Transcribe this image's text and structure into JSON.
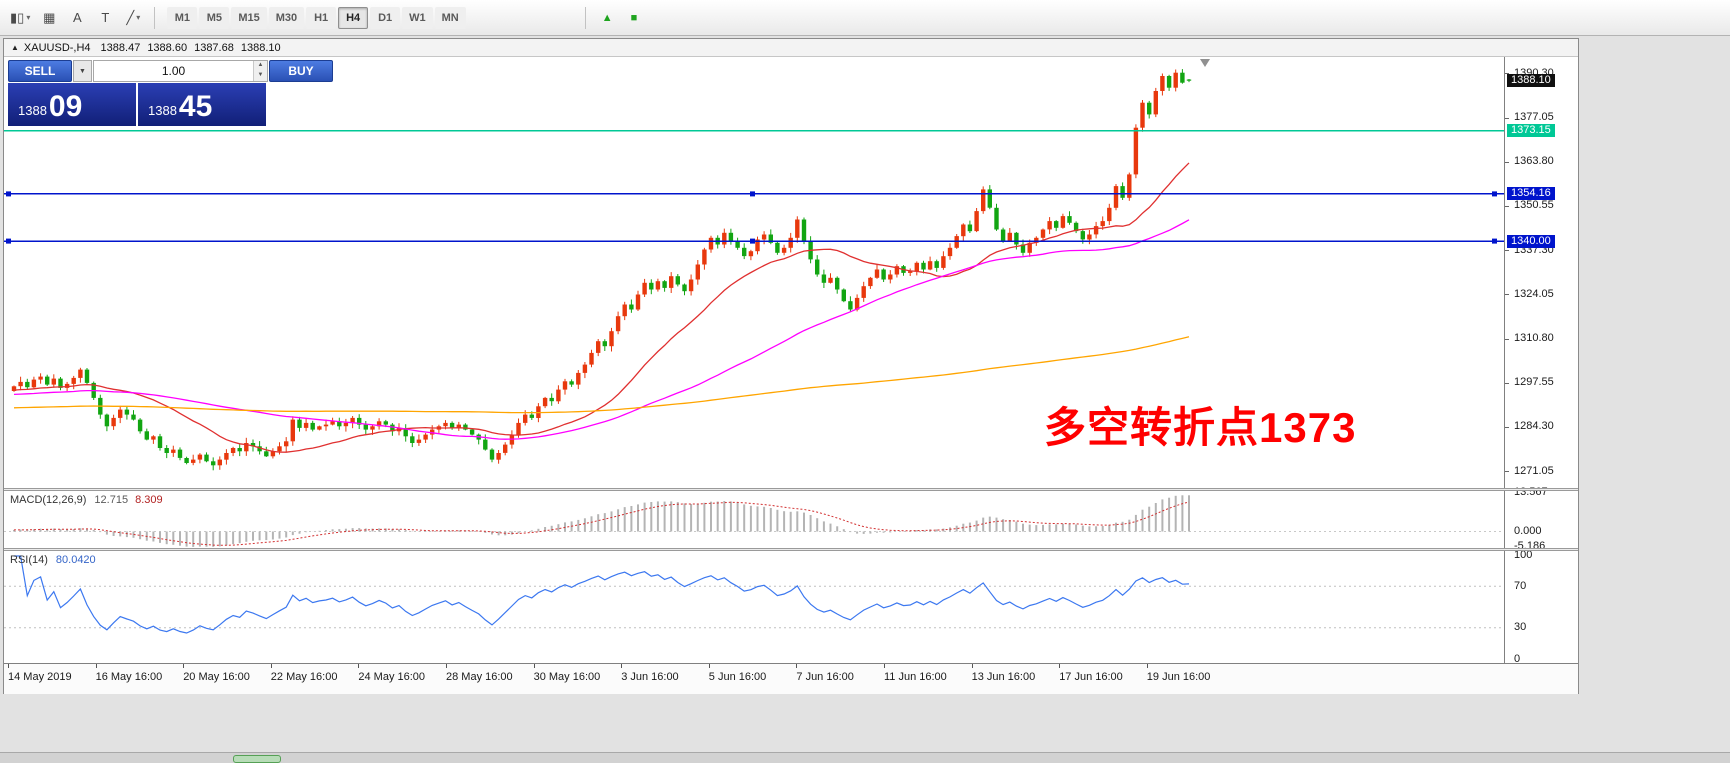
{
  "toolbar": {
    "icons": [
      {
        "name": "candlestick-chart-icon",
        "glyph": "▮▯"
      },
      {
        "name": "grid-icon",
        "glyph": "▦"
      },
      {
        "name": "letter-a-icon",
        "glyph": "A"
      },
      {
        "name": "text-label-icon",
        "glyph": "T"
      },
      {
        "name": "line-tools-icon",
        "glyph": "╱"
      },
      {
        "name": "dropdown-caret-icon",
        "glyph": "▾"
      }
    ],
    "green_markers": [
      {
        "glyph": "▲"
      },
      {
        "glyph": "■"
      }
    ],
    "timeframes": [
      {
        "label": "M1",
        "active": false
      },
      {
        "label": "M5",
        "active": false
      },
      {
        "label": "M15",
        "active": false
      },
      {
        "label": "M30",
        "active": false
      },
      {
        "label": "H1",
        "active": false
      },
      {
        "label": "H4",
        "active": true
      },
      {
        "label": "D1",
        "active": false
      },
      {
        "label": "W1",
        "active": false
      },
      {
        "label": "MN",
        "active": false
      }
    ]
  },
  "chart": {
    "header": {
      "collapse_icon": "▲",
      "symbol_period": "XAUUSD-,H4",
      "open": "1388.47",
      "high": "1388.60",
      "low": "1387.68",
      "close": "1388.10"
    },
    "trade_panel": {
      "sell_label": "SELL",
      "buy_label": "BUY",
      "volume": "1.00",
      "dropdown_glyph": "▼",
      "stepper_up": "▲",
      "stepper_down": "▼",
      "sell_price_small": "1388",
      "sell_price_big": "09",
      "buy_price_small": "1388",
      "buy_price_big": "45"
    },
    "annotation": "多空转折点1373",
    "price_scale": {
      "ticks": [
        "1390.30",
        "1377.05",
        "1363.80",
        "1350.55",
        "1337.30",
        "1324.05",
        "1310.80",
        "1297.55",
        "1284.30",
        "1271.05"
      ],
      "badges": [
        {
          "label": "1388.10",
          "color": "#101010",
          "type": "current-price"
        },
        {
          "label": "1373.15",
          "color": "#00C896",
          "type": "level"
        },
        {
          "label": "1354.16",
          "color": "#0014CC",
          "type": "level"
        },
        {
          "label": "1340.00",
          "color": "#0014CC",
          "type": "level"
        }
      ]
    },
    "time_axis": [
      "14 May 2019",
      "16 May 16:00",
      "20 May 16:00",
      "22 May 16:00",
      "24 May 16:00",
      "28 May 16:00",
      "30 May 16:00",
      "3 Jun 16:00",
      "5 Jun 16:00",
      "7 Jun 16:00",
      "11 Jun 16:00",
      "13 Jun 16:00",
      "17 Jun 16:00",
      "19 Jun 16:00"
    ]
  },
  "macd": {
    "title": "MACD(12,26,9)",
    "value_main": "12.715",
    "value_signal": "8.309",
    "scale": [
      "13.567",
      "0.000",
      "-5.186"
    ],
    "ylim": [
      -5.8,
      14.2
    ],
    "fast": 12,
    "slow": 26,
    "signal": 9
  },
  "rsi": {
    "title": "RSI(14)",
    "value": "80.0420",
    "period": 14,
    "levels": [
      70,
      30
    ],
    "scale": [
      "100",
      "70",
      "30",
      "0"
    ]
  },
  "colors": {
    "up": "#E8380D",
    "down": "#12A512",
    "macd_hist": "#b4b4b4",
    "macd_signal": "#d23030",
    "rsi_line": "#3C78F0",
    "annotation": "#FF0000"
  },
  "chart_data": {
    "type": "candlestick",
    "symbol": "XAUUSD-",
    "timeframe": "H4",
    "ylim": [
      1266,
      1395.5
    ],
    "ohlc_current": {
      "open": 1388.47,
      "high": 1388.6,
      "low": 1387.68,
      "close": 1388.1
    },
    "closes": [
      1296.5,
      1297.8,
      1296.2,
      1298.5,
      1299.4,
      1297.0,
      1298.8,
      1296.0,
      1297.2,
      1299.0,
      1301.5,
      1297.5,
      1293.0,
      1288.0,
      1284.5,
      1287.0,
      1289.5,
      1288.0,
      1286.5,
      1283.0,
      1280.5,
      1281.5,
      1278.0,
      1276.5,
      1277.5,
      1275.0,
      1273.5,
      1274.5,
      1276.0,
      1274.0,
      1272.8,
      1274.5,
      1276.5,
      1278.0,
      1277.0,
      1279.5,
      1278.5,
      1277.0,
      1275.5,
      1277.0,
      1278.5,
      1280.0,
      1286.5,
      1284.0,
      1285.5,
      1283.5,
      1284.5,
      1285.0,
      1286.0,
      1284.5,
      1285.5,
      1287.0,
      1285.0,
      1283.5,
      1284.5,
      1286.0,
      1285.0,
      1283.0,
      1284.0,
      1281.5,
      1279.5,
      1280.5,
      1282.0,
      1283.5,
      1284.5,
      1285.5,
      1284.0,
      1285.0,
      1283.5,
      1282.0,
      1280.5,
      1277.5,
      1274.5,
      1276.5,
      1279.0,
      1282.0,
      1285.5,
      1288.0,
      1287.0,
      1290.5,
      1293.0,
      1292.0,
      1295.5,
      1298.0,
      1297.0,
      1300.5,
      1303.0,
      1306.5,
      1310.0,
      1308.5,
      1313.0,
      1317.5,
      1321.0,
      1319.5,
      1324.0,
      1327.5,
      1325.5,
      1328.0,
      1326.0,
      1329.5,
      1327.0,
      1325.0,
      1328.5,
      1333.0,
      1337.5,
      1341.0,
      1339.0,
      1342.5,
      1340.0,
      1338.0,
      1335.5,
      1337.0,
      1340.5,
      1342.0,
      1339.5,
      1336.5,
      1338.0,
      1341.0,
      1346.5,
      1340.0,
      1334.5,
      1330.0,
      1327.5,
      1329.0,
      1325.5,
      1322.0,
      1319.5,
      1323.0,
      1326.5,
      1329.0,
      1331.5,
      1328.5,
      1330.0,
      1332.5,
      1330.5,
      1331.0,
      1333.5,
      1331.5,
      1334.0,
      1332.0,
      1335.5,
      1338.0,
      1341.5,
      1345.0,
      1343.0,
      1349.0,
      1355.5,
      1350.0,
      1343.5,
      1340.0,
      1342.5,
      1339.0,
      1336.5,
      1339.5,
      1341.0,
      1343.5,
      1346.0,
      1344.0,
      1347.5,
      1345.5,
      1343.0,
      1340.5,
      1342.0,
      1344.5,
      1346.0,
      1350.0,
      1356.5,
      1353.0,
      1360.0,
      1374.0,
      1381.5,
      1378.0,
      1385.0,
      1389.5,
      1386.0,
      1390.5,
      1387.5,
      1388.1
    ],
    "hlines": [
      {
        "price": 1373.15,
        "color": "#00C896",
        "handles": false
      },
      {
        "price": 1354.16,
        "color": "#0014CC",
        "handles": true
      },
      {
        "price": 1340.0,
        "color": "#0014CC",
        "handles": true
      }
    ],
    "moving_averages": [
      {
        "period": 21,
        "color": "#E03030"
      },
      {
        "period": 55,
        "color": "#FF00FF"
      },
      {
        "period": 200,
        "color": "#FFA500"
      }
    ]
  }
}
